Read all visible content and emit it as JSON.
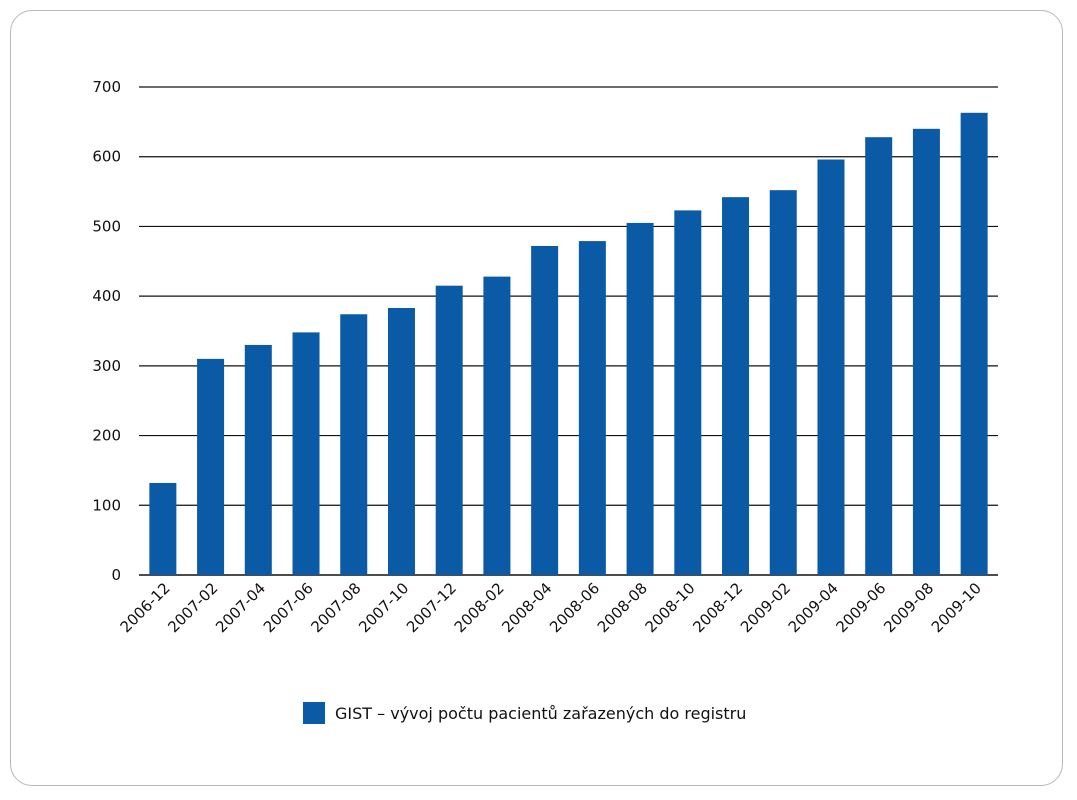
{
  "chart_data": {
    "type": "bar",
    "categories": [
      "2006-12",
      "2007-02",
      "2007-04",
      "2007-06",
      "2007-08",
      "2007-10",
      "2007-12",
      "2008-02",
      "2008-04",
      "2008-06",
      "2008-08",
      "2008-10",
      "2008-12",
      "2009-02",
      "2009-04",
      "2009-06",
      "2009-08",
      "2009-10"
    ],
    "series": [
      {
        "name": "GIST – vývoj počtu pacientů zařazených do registru",
        "values": [
          132,
          310,
          330,
          348,
          374,
          383,
          415,
          428,
          472,
          479,
          505,
          523,
          542,
          552,
          596,
          628,
          640,
          663
        ]
      }
    ],
    "yticks": [
      0,
      100,
      200,
      300,
      400,
      500,
      600,
      700
    ],
    "ylim": [
      0,
      700
    ],
    "grid": true,
    "legend": "bottom",
    "bar_color": "#0a5aa6"
  }
}
